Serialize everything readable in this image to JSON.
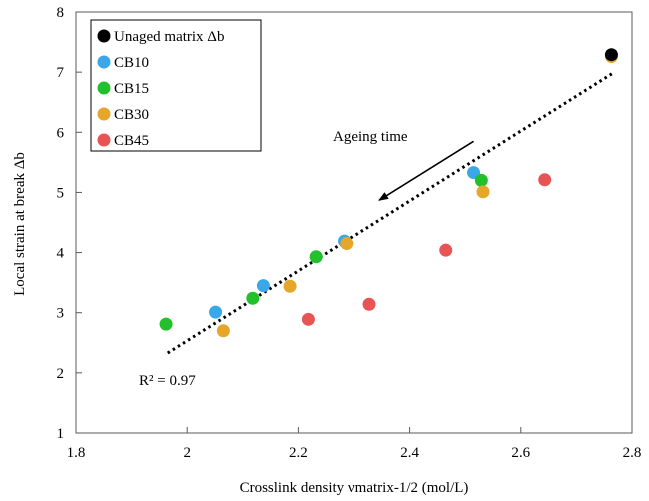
{
  "chart_data": {
    "type": "scatter",
    "xlabel": "Crosslink density νmatrix-1/2 (mol/L)",
    "ylabel": "Local strain at break Δb",
    "xlim": [
      1.8,
      2.8
    ],
    "ylim": [
      1,
      8
    ],
    "xticks": [
      "1.8",
      "2",
      "2.2",
      "2.4",
      "2.6",
      "2.8"
    ],
    "yticks": [
      "1",
      "2",
      "3",
      "4",
      "5",
      "6",
      "7",
      "8"
    ],
    "grid": false,
    "legend_position": "top-left",
    "series": [
      {
        "name": "Unaged matrix Δb",
        "color": "#000000",
        "points": [
          [
            2.763,
            7.29
          ]
        ]
      },
      {
        "name": "CB10",
        "color": "#3aa8e8",
        "points": [
          [
            2.051,
            3.01
          ],
          [
            2.137,
            3.45
          ],
          [
            2.283,
            4.19
          ],
          [
            2.515,
            5.33
          ]
        ]
      },
      {
        "name": "CB15",
        "color": "#22c02a",
        "points": [
          [
            1.962,
            2.81
          ],
          [
            2.118,
            3.24
          ],
          [
            2.232,
            3.93
          ],
          [
            2.529,
            5.2
          ]
        ]
      },
      {
        "name": "CB30",
        "color": "#e5a62a",
        "points": [
          [
            2.065,
            2.7
          ],
          [
            2.185,
            3.44
          ],
          [
            2.287,
            4.15
          ],
          [
            2.532,
            5.01
          ],
          [
            2.763,
            7.26
          ]
        ]
      },
      {
        "name": "CB45",
        "color": "#e85454",
        "points": [
          [
            2.218,
            2.89
          ],
          [
            2.327,
            3.14
          ],
          [
            2.465,
            4.04
          ],
          [
            2.643,
            5.21
          ]
        ]
      }
    ],
    "trendline": {
      "style": "dotted",
      "x": [
        1.965,
        2.765
      ],
      "y": [
        2.33,
        6.98
      ]
    },
    "annotations": {
      "r2_label": "R² = 0.97",
      "arrow_label": "Ageing time"
    },
    "arrow": {
      "from": [
        2.515,
        5.85
      ],
      "to": [
        2.345,
        4.87
      ]
    }
  }
}
